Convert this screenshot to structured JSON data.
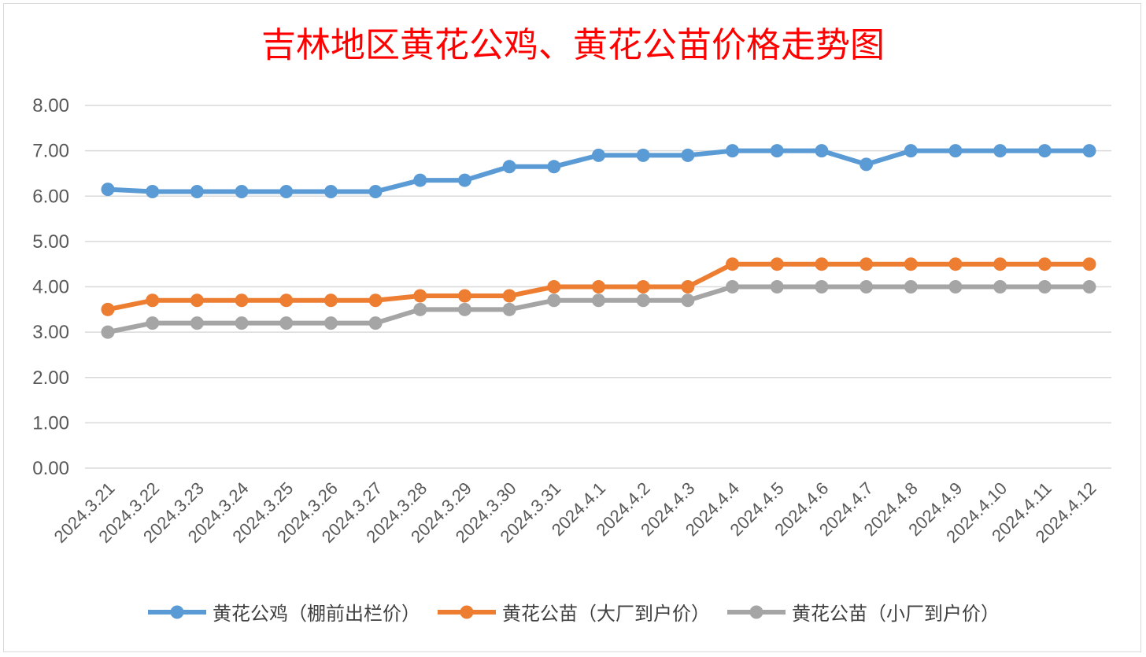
{
  "chart_data": {
    "type": "line",
    "title": "吉林地区黄花公鸡、黄花公苗价格走势图",
    "categories": [
      "2024.3.21",
      "2024.3.22",
      "2024.3.23",
      "2024.3.24",
      "2024.3.25",
      "2024.3.26",
      "2024.3.27",
      "2024.3.28",
      "2024.3.29",
      "2024.3.30",
      "2024.3.31",
      "2024.4.1",
      "2024.4.2",
      "2024.4.3",
      "2024.4.4",
      "2024.4.5",
      "2024.4.6",
      "2024.4.7",
      "2024.4.8",
      "2024.4.9",
      "2024.4.10",
      "2024.4.11",
      "2024.4.12"
    ],
    "ylim": [
      0,
      8
    ],
    "yticks": [
      "0.00",
      "1.00",
      "2.00",
      "3.00",
      "4.00",
      "5.00",
      "6.00",
      "7.00",
      "8.00"
    ],
    "grid": true,
    "legend_position": "bottom",
    "series": [
      {
        "name": "黄花公鸡（棚前出栏价）",
        "color": "#5b9bd5",
        "values": [
          6.15,
          6.1,
          6.1,
          6.1,
          6.1,
          6.1,
          6.1,
          6.35,
          6.35,
          6.65,
          6.65,
          6.9,
          6.9,
          6.9,
          7.0,
          7.0,
          7.0,
          6.7,
          7.0,
          7.0,
          7.0,
          7.0,
          7.0
        ]
      },
      {
        "name": "黄花公苗（大厂到户价）",
        "color": "#ed7d31",
        "values": [
          3.5,
          3.7,
          3.7,
          3.7,
          3.7,
          3.7,
          3.7,
          3.8,
          3.8,
          3.8,
          4.0,
          4.0,
          4.0,
          4.0,
          4.5,
          4.5,
          4.5,
          4.5,
          4.5,
          4.5,
          4.5,
          4.5,
          4.5
        ]
      },
      {
        "name": "黄花公苗（小厂到户价）",
        "color": "#a5a5a5",
        "values": [
          3.0,
          3.2,
          3.2,
          3.2,
          3.2,
          3.2,
          3.2,
          3.5,
          3.5,
          3.5,
          3.7,
          3.7,
          3.7,
          3.7,
          4.0,
          4.0,
          4.0,
          4.0,
          4.0,
          4.0,
          4.0,
          4.0,
          4.0
        ]
      }
    ]
  }
}
